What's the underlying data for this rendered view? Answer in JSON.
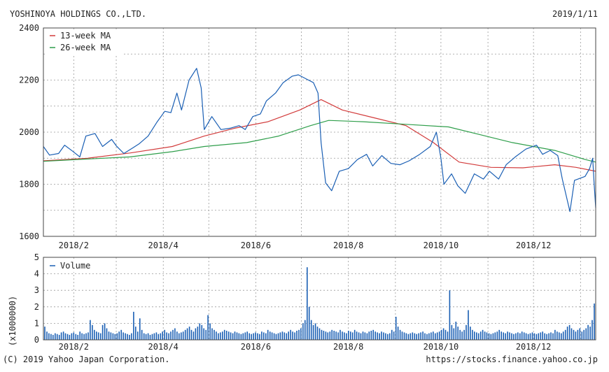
{
  "header": {
    "company": "YOSHINOYA HOLDINGS CO.,LTD.",
    "date": "2019/1/11"
  },
  "footer": {
    "copyright": "(C) 2019 Yahoo Japan Corporation.",
    "url": "https://stocks.finance.yahoo.co.jp"
  },
  "colors": {
    "price": "#1a5fb4",
    "ma13": "#d23b3b",
    "ma26": "#2e9e4a",
    "volume": "#1a5fb4",
    "grid": "#999999",
    "frame": "#444444"
  },
  "chart_data": [
    {
      "type": "line",
      "x_ticks": [
        "2018/2",
        "2018/4",
        "2018/6",
        "2018/8",
        "2018/10",
        "2018/12"
      ],
      "ylim": [
        1600,
        2400
      ],
      "y_ticks": [
        1600,
        1800,
        2000,
        2200,
        2400
      ],
      "legend": [
        "13-week MA",
        "26-week MA"
      ],
      "legend_position": "top-left",
      "grid": true,
      "x_range": [
        "2018-01-12",
        "2019-01-11"
      ],
      "series": [
        {
          "name": "price",
          "points": [
            [
              "2018-01-12",
              1945
            ],
            [
              "2018-01-16",
              1912
            ],
            [
              "2018-01-22",
              1918
            ],
            [
              "2018-01-26",
              1950
            ],
            [
              "2018-01-31",
              1928
            ],
            [
              "2018-02-05",
              1905
            ],
            [
              "2018-02-09",
              1985
            ],
            [
              "2018-02-15",
              1995
            ],
            [
              "2018-02-20",
              1945
            ],
            [
              "2018-02-26",
              1972
            ],
            [
              "2018-03-01",
              1948
            ],
            [
              "2018-03-06",
              1918
            ],
            [
              "2018-03-12",
              1940
            ],
            [
              "2018-03-16",
              1955
            ],
            [
              "2018-03-22",
              1985
            ],
            [
              "2018-03-28",
              2040
            ],
            [
              "2018-04-02",
              2080
            ],
            [
              "2018-04-06",
              2075
            ],
            [
              "2018-04-10",
              2150
            ],
            [
              "2018-04-13",
              2085
            ],
            [
              "2018-04-18",
              2200
            ],
            [
              "2018-04-23",
              2245
            ],
            [
              "2018-04-26",
              2170
            ],
            [
              "2018-04-28",
              2010
            ],
            [
              "2018-05-03",
              2060
            ],
            [
              "2018-05-09",
              2010
            ],
            [
              "2018-05-15",
              2015
            ],
            [
              "2018-05-21",
              2025
            ],
            [
              "2018-05-25",
              2010
            ],
            [
              "2018-05-30",
              2060
            ],
            [
              "2018-06-04",
              2070
            ],
            [
              "2018-06-08",
              2120
            ],
            [
              "2018-06-14",
              2150
            ],
            [
              "2018-06-19",
              2190
            ],
            [
              "2018-06-25",
              2215
            ],
            [
              "2018-06-29",
              2220
            ],
            [
              "2018-07-04",
              2205
            ],
            [
              "2018-07-09",
              2190
            ],
            [
              "2018-07-12",
              2150
            ],
            [
              "2018-07-14",
              1960
            ],
            [
              "2018-07-17",
              1805
            ],
            [
              "2018-07-21",
              1775
            ],
            [
              "2018-07-26",
              1850
            ],
            [
              "2018-08-01",
              1860
            ],
            [
              "2018-08-07",
              1895
            ],
            [
              "2018-08-13",
              1915
            ],
            [
              "2018-08-17",
              1870
            ],
            [
              "2018-08-23",
              1910
            ],
            [
              "2018-08-29",
              1880
            ],
            [
              "2018-09-04",
              1875
            ],
            [
              "2018-09-10",
              1890
            ],
            [
              "2018-09-17",
              1915
            ],
            [
              "2018-09-24",
              1945
            ],
            [
              "2018-09-28",
              2000
            ],
            [
              "2018-10-01",
              1900
            ],
            [
              "2018-10-03",
              1800
            ],
            [
              "2018-10-08",
              1840
            ],
            [
              "2018-10-12",
              1795
            ],
            [
              "2018-10-17",
              1765
            ],
            [
              "2018-10-23",
              1840
            ],
            [
              "2018-10-29",
              1820
            ],
            [
              "2018-11-02",
              1850
            ],
            [
              "2018-11-08",
              1820
            ],
            [
              "2018-11-13",
              1875
            ],
            [
              "2018-11-19",
              1905
            ],
            [
              "2018-11-26",
              1935
            ],
            [
              "2018-12-03",
              1950
            ],
            [
              "2018-12-07",
              1915
            ],
            [
              "2018-12-12",
              1930
            ],
            [
              "2018-12-17",
              1910
            ],
            [
              "2018-12-20",
              1820
            ],
            [
              "2018-12-25",
              1695
            ],
            [
              "2018-12-28",
              1815
            ],
            [
              "2019-01-04",
              1830
            ],
            [
              "2019-01-07",
              1860
            ],
            [
              "2019-01-09",
              1900
            ],
            [
              "2019-01-10",
              1800
            ],
            [
              "2019-01-11",
              1710
            ]
          ]
        },
        {
          "name": "13-week MA",
          "points": [
            [
              "2018-01-12",
              1890
            ],
            [
              "2018-02-10",
              1900
            ],
            [
              "2018-03-10",
              1920
            ],
            [
              "2018-04-07",
              1945
            ],
            [
              "2018-04-28",
              1985
            ],
            [
              "2018-05-18",
              2015
            ],
            [
              "2018-06-09",
              2040
            ],
            [
              "2018-06-30",
              2085
            ],
            [
              "2018-07-14",
              2125
            ],
            [
              "2018-07-28",
              2085
            ],
            [
              "2018-08-18",
              2055
            ],
            [
              "2018-09-08",
              2025
            ],
            [
              "2018-09-26",
              1960
            ],
            [
              "2018-10-13",
              1885
            ],
            [
              "2018-11-03",
              1865
            ],
            [
              "2018-11-24",
              1863
            ],
            [
              "2018-12-15",
              1875
            ],
            [
              "2018-12-29",
              1865
            ],
            [
              "2019-01-11",
              1850
            ]
          ]
        },
        {
          "name": "26-week MA",
          "points": [
            [
              "2018-01-12",
              1888
            ],
            [
              "2018-02-10",
              1897
            ],
            [
              "2018-03-10",
              1905
            ],
            [
              "2018-04-07",
              1925
            ],
            [
              "2018-04-28",
              1945
            ],
            [
              "2018-05-26",
              1960
            ],
            [
              "2018-06-16",
              1985
            ],
            [
              "2018-07-07",
              2025
            ],
            [
              "2018-07-19",
              2045
            ],
            [
              "2018-08-11",
              2040
            ],
            [
              "2018-09-08",
              2030
            ],
            [
              "2018-10-06",
              2020
            ],
            [
              "2018-10-27",
              1990
            ],
            [
              "2018-11-17",
              1960
            ],
            [
              "2018-12-15",
              1930
            ],
            [
              "2019-01-04",
              1895
            ],
            [
              "2019-01-11",
              1885
            ]
          ]
        }
      ]
    },
    {
      "type": "bar",
      "legend": [
        "Volume"
      ],
      "legend_position": "top-left",
      "ylabel": "(x1000000)",
      "ylim": [
        0,
        5
      ],
      "y_ticks": [
        0,
        1,
        2,
        3,
        4,
        5
      ],
      "x_ticks": [
        "2018/2",
        "2018/4",
        "2018/6",
        "2018/8",
        "2018/10",
        "2018/12"
      ],
      "grid": true,
      "x_range": [
        "2018-01-12",
        "2019-01-11"
      ],
      "values": [
        0.8,
        0.5,
        0.4,
        0.35,
        0.3,
        0.4,
        0.35,
        0.3,
        0.45,
        0.5,
        0.4,
        0.35,
        0.3,
        0.4,
        0.45,
        0.35,
        0.3,
        0.5,
        0.4,
        0.35,
        0.4,
        0.45,
        1.2,
        0.9,
        0.6,
        0.5,
        0.45,
        0.4,
        0.9,
        1.0,
        0.7,
        0.5,
        0.45,
        0.4,
        0.35,
        0.4,
        0.5,
        0.6,
        0.45,
        0.4,
        0.35,
        0.3,
        0.4,
        1.7,
        0.8,
        0.5,
        1.3,
        0.6,
        0.4,
        0.35,
        0.4,
        0.3,
        0.35,
        0.4,
        0.45,
        0.35,
        0.4,
        0.5,
        0.6,
        0.45,
        0.4,
        0.5,
        0.6,
        0.7,
        0.5,
        0.4,
        0.45,
        0.5,
        0.6,
        0.7,
        0.8,
        0.6,
        0.5,
        0.7,
        0.8,
        1.0,
        0.9,
        0.7,
        0.6,
        1.5,
        1.0,
        0.7,
        0.6,
        0.5,
        0.4,
        0.45,
        0.5,
        0.6,
        0.55,
        0.5,
        0.45,
        0.4,
        0.5,
        0.45,
        0.4,
        0.35,
        0.4,
        0.45,
        0.5,
        0.4,
        0.35,
        0.4,
        0.45,
        0.4,
        0.35,
        0.5,
        0.45,
        0.4,
        0.6,
        0.5,
        0.45,
        0.4,
        0.35,
        0.4,
        0.45,
        0.5,
        0.45,
        0.4,
        0.5,
        0.6,
        0.5,
        0.45,
        0.55,
        0.6,
        0.7,
        1.0,
        1.2,
        4.4,
        2.0,
        1.2,
        0.9,
        1.0,
        0.8,
        0.7,
        0.6,
        0.55,
        0.5,
        0.45,
        0.5,
        0.6,
        0.55,
        0.5,
        0.45,
        0.6,
        0.5,
        0.45,
        0.4,
        0.55,
        0.5,
        0.45,
        0.6,
        0.5,
        0.45,
        0.4,
        0.5,
        0.45,
        0.4,
        0.5,
        0.55,
        0.6,
        0.5,
        0.45,
        0.4,
        0.5,
        0.45,
        0.4,
        0.35,
        0.4,
        0.6,
        0.5,
        1.4,
        0.8,
        0.6,
        0.5,
        0.45,
        0.4,
        0.35,
        0.4,
        0.45,
        0.4,
        0.35,
        0.4,
        0.45,
        0.5,
        0.4,
        0.35,
        0.4,
        0.45,
        0.5,
        0.4,
        0.45,
        0.5,
        0.6,
        0.7,
        0.6,
        0.5,
        3.0,
        0.9,
        0.7,
        1.1,
        0.8,
        0.6,
        0.5,
        0.6,
        0.9,
        1.8,
        0.8,
        0.6,
        0.5,
        0.45,
        0.4,
        0.5,
        0.6,
        0.5,
        0.45,
        0.4,
        0.35,
        0.4,
        0.45,
        0.5,
        0.6,
        0.5,
        0.45,
        0.4,
        0.5,
        0.45,
        0.4,
        0.35,
        0.4,
        0.45,
        0.4,
        0.5,
        0.45,
        0.4,
        0.35,
        0.4,
        0.45,
        0.4,
        0.35,
        0.4,
        0.45,
        0.5,
        0.4,
        0.35,
        0.4,
        0.45,
        0.4,
        0.6,
        0.5,
        0.45,
        0.4,
        0.5,
        0.6,
        0.8,
        0.9,
        0.7,
        0.6,
        0.5,
        0.6,
        0.7,
        0.5,
        0.6,
        0.7,
        0.9,
        0.8,
        1.2,
        2.2
      ]
    }
  ]
}
